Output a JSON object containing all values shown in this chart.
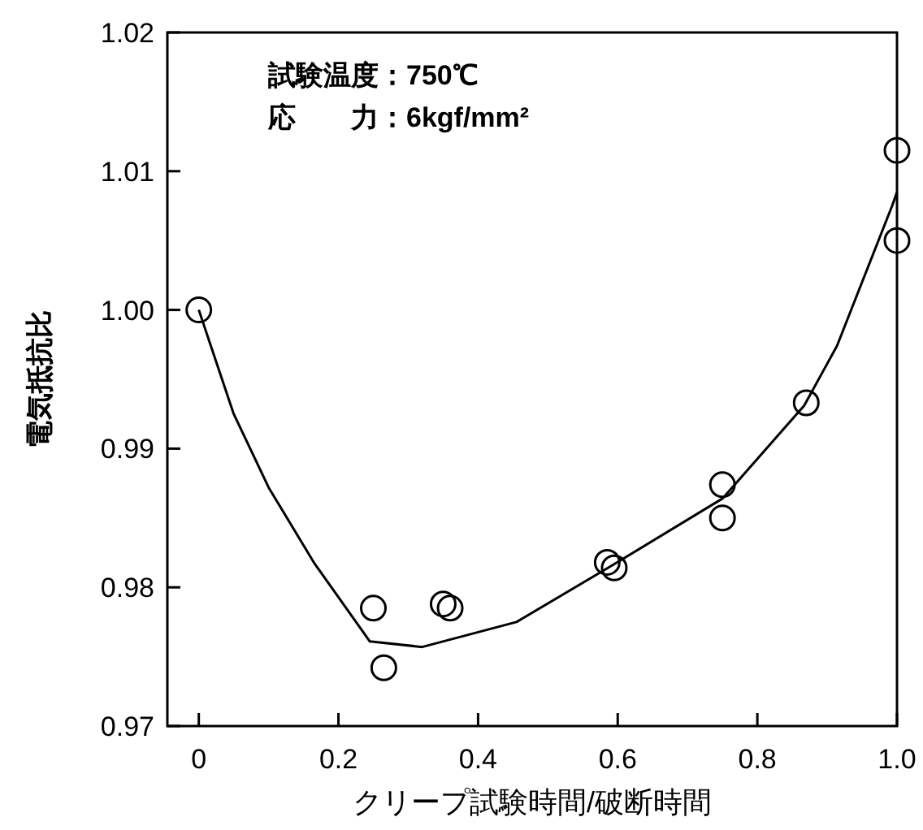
{
  "chart_data": {
    "type": "scatter",
    "xlabel": "クリープ試験時間/破断時間",
    "ylabel": "電気抵抗比",
    "annotations": [
      "試験温度：750℃",
      "応　　力：6kgf/mm²"
    ],
    "xlim": [
      -0.045,
      1.0
    ],
    "ylim": [
      0.97,
      1.02
    ],
    "xticks": [
      0,
      0.2,
      0.4,
      0.6,
      0.8,
      {
        "value": 1.0,
        "label": "1.0"
      }
    ],
    "yticks": [
      0.97,
      0.98,
      0.99,
      {
        "value": 1.0,
        "label": "1.00"
      },
      1.01,
      1.02
    ],
    "series": [
      {
        "marker": "circle",
        "color": "#000000",
        "x": [
          0,
          0.25,
          0.265,
          0.35,
          0.36,
          0.585,
          0.595,
          0.75,
          0.75,
          0.87,
          1.0,
          1.0
        ],
        "values": [
          1.0,
          0.9785,
          0.9742,
          0.9788,
          0.9785,
          0.9818,
          0.9814,
          0.9874,
          0.985,
          0.9933,
          1.0115,
          1.005
        ]
      },
      {
        "type": "line",
        "marker": "none",
        "color": "#000000",
        "x": [
          0,
          0.05,
          0.1,
          0.166,
          0.245,
          0.32,
          0.455,
          0.586,
          0.75,
          0.867,
          0.914,
          0.993,
          1.0
        ],
        "values": [
          1.0,
          0.9925,
          0.9872,
          0.9817,
          0.9761,
          0.9757,
          0.9775,
          0.9814,
          0.9864,
          0.9931,
          0.9974,
          1.0075,
          1.0085
        ]
      }
    ]
  }
}
